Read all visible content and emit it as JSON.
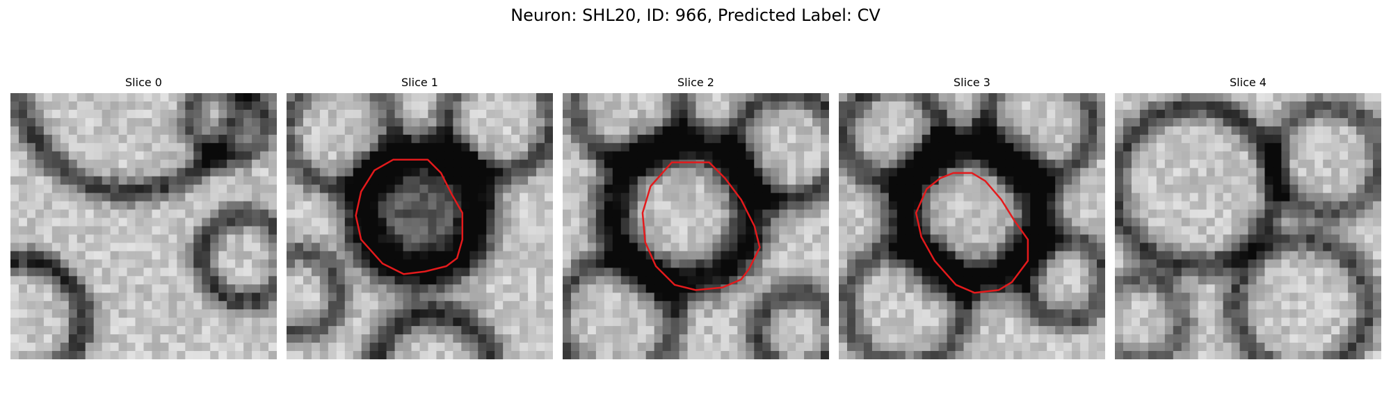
{
  "figure": {
    "title": "Neuron: SHL20, ID: 966, Predicted Label: CV"
  },
  "panels": [
    {
      "title": "Slice 0",
      "has_outline": false
    },
    {
      "title": "Slice 1",
      "has_outline": true
    },
    {
      "title": "Slice 2",
      "has_outline": true
    },
    {
      "title": "Slice 3",
      "has_outline": true
    },
    {
      "title": "Slice 4",
      "has_outline": false
    }
  ],
  "colors": {
    "outline": "#e41a1c",
    "background": "#ffffff"
  }
}
